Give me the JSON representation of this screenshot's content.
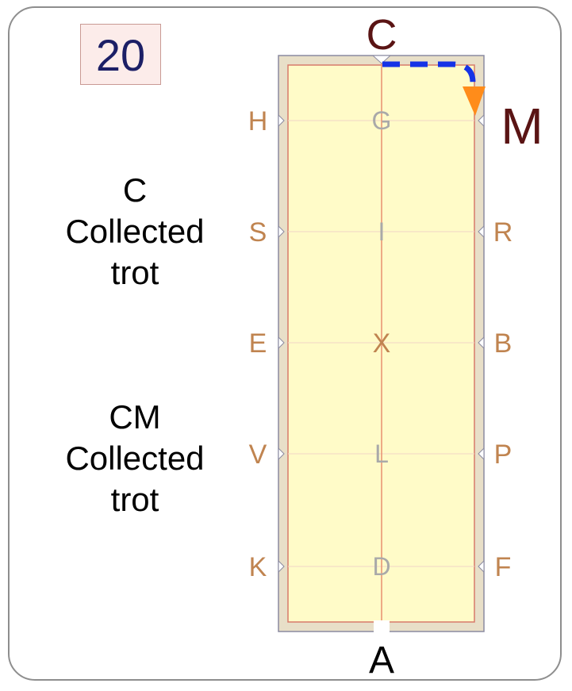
{
  "step_number": "20",
  "movements": [
    {
      "marker": "C",
      "gait_line1": "Collected",
      "gait_line2": "trot"
    },
    {
      "marker": "CM",
      "gait_line1": "Collected",
      "gait_line2": "trot"
    }
  ],
  "arena": {
    "top_letter": "C",
    "bottom_letter": "A",
    "highlight_letter": "M",
    "left_letters": [
      "H",
      "S",
      "E",
      "V",
      "K"
    ],
    "right_letters": [
      "",
      "R",
      "B",
      "P",
      "F"
    ],
    "center_letters": [
      "G",
      "I",
      "X",
      "L",
      "D"
    ]
  },
  "colors": {
    "arena_fill": "#fffbc8",
    "arena_border": "#e8dfc8",
    "letter": "#c08450",
    "center_letter": "#a9a9a9",
    "top_letter": "#5a1414",
    "path": "#1633e6",
    "arrow": "#ff8c1a"
  }
}
